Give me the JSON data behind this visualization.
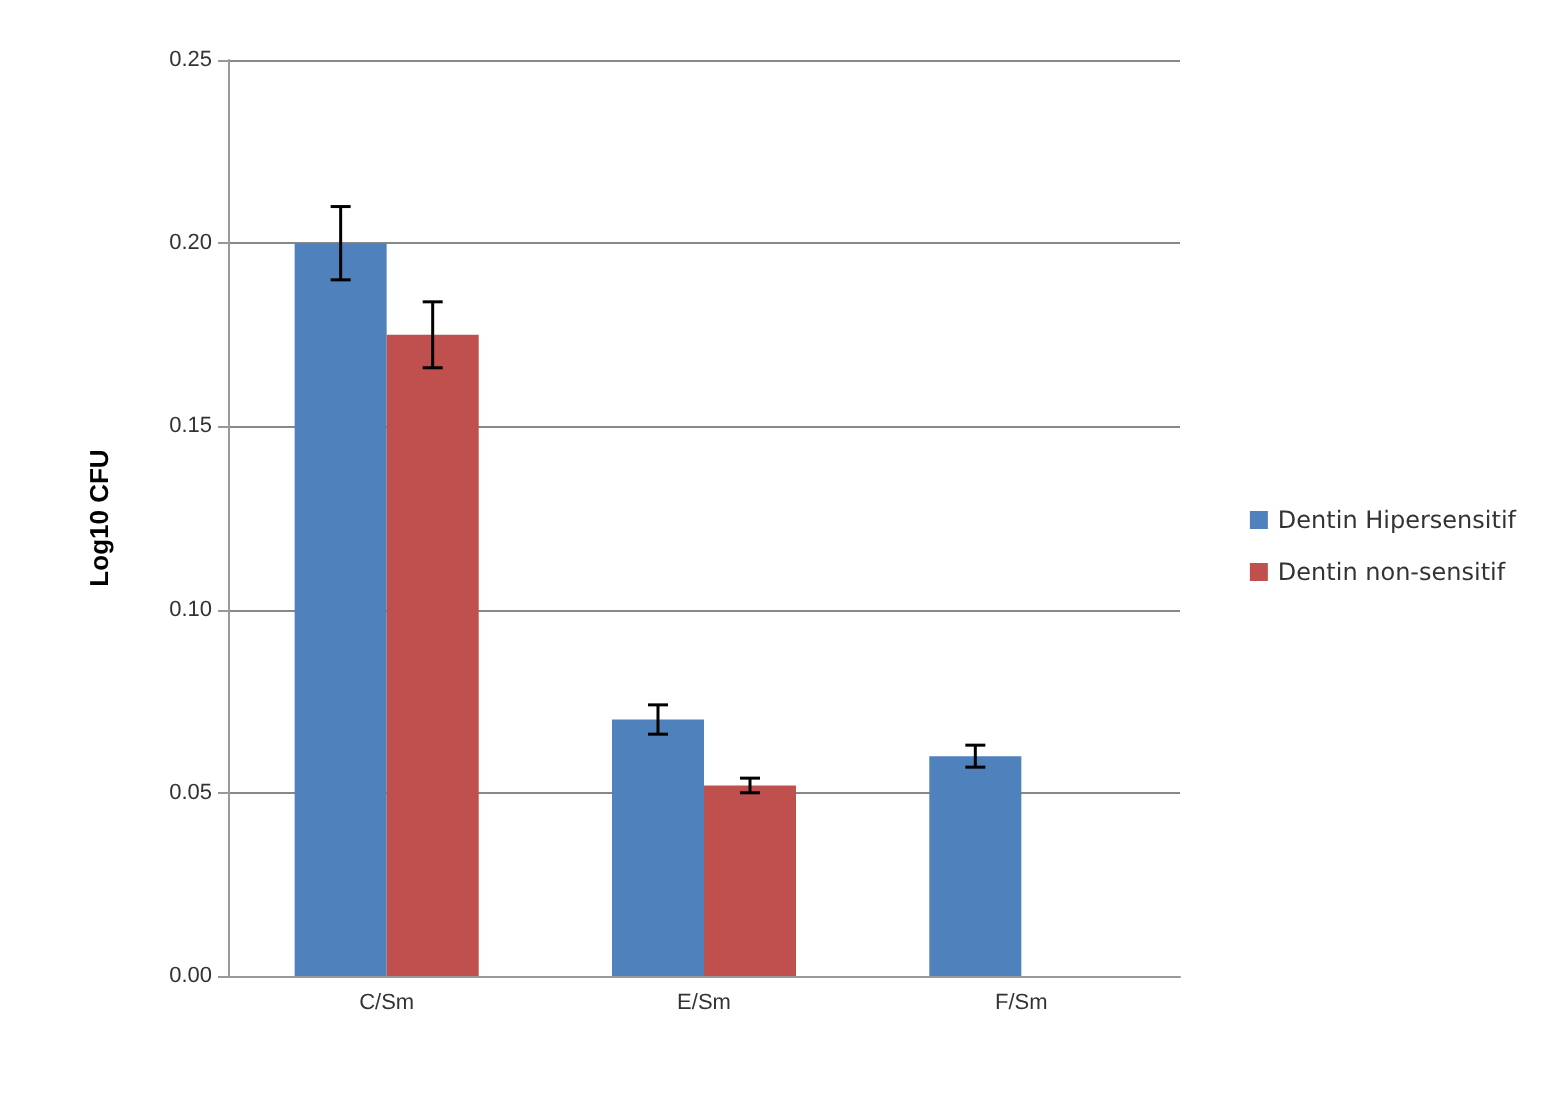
{
  "chart_data": {
    "type": "bar",
    "ylabel": "Log10 CFU",
    "categories": [
      "C/Sm",
      "E/Sm",
      "F/Sm"
    ],
    "series": [
      {
        "name": "Dentin Hipersensitif",
        "color": "#4f81bd",
        "values": [
          0.2,
          0.07,
          0.06
        ],
        "errors": [
          0.01,
          0.004,
          0.003
        ]
      },
      {
        "name": "Dentin non-sensitif",
        "color": "#c0504d",
        "values": [
          0.175,
          0.052,
          null
        ],
        "errors": [
          0.009,
          0.002,
          null
        ]
      }
    ],
    "ylim": [
      0,
      0.25
    ],
    "yticks": [
      {
        "value": 0,
        "label": "0.00"
      },
      {
        "value": 0.05,
        "label": "0.05"
      },
      {
        "value": 0.1,
        "label": "0.10"
      },
      {
        "value": 0.15,
        "label": "0.15"
      },
      {
        "value": 0.2,
        "label": "0.20"
      },
      {
        "value": 0.25,
        "label": "0.25"
      }
    ],
    "grid": "y",
    "legend": "right"
  }
}
